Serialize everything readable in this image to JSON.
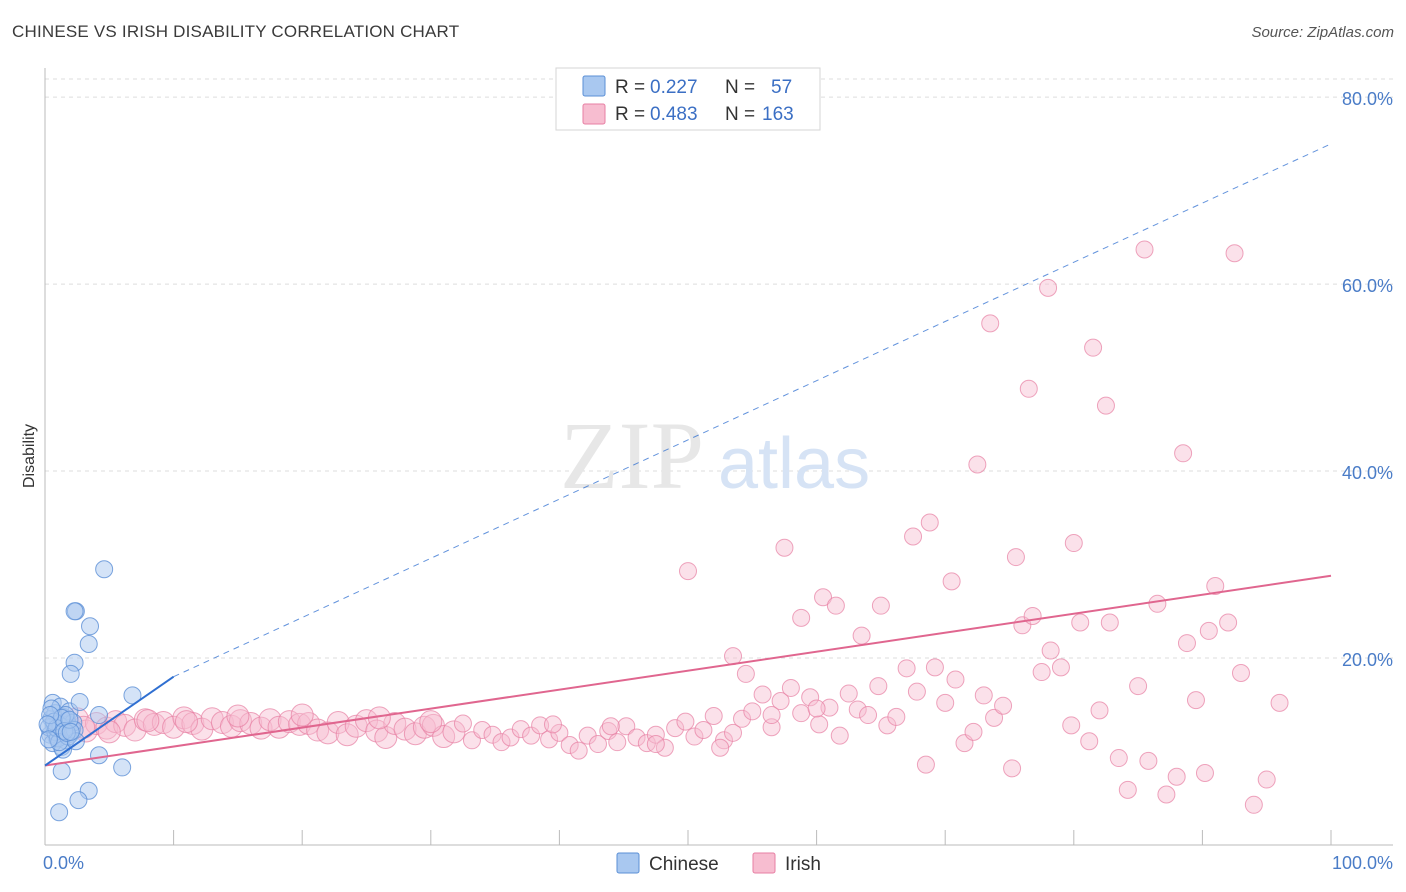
{
  "title": "CHINESE VS IRISH DISABILITY CORRELATION CHART",
  "source": "Source: ZipAtlas.com",
  "watermark": {
    "zip": "ZIP",
    "atlas": "atlas"
  },
  "colors": {
    "chinese_fill": "#a9c8f0",
    "chinese_stroke": "#5b8fd6",
    "chinese_line": "#2f6fd1",
    "irish_fill": "#f7bdd0",
    "irish_stroke": "#e77fa3",
    "irish_line": "#e0668f",
    "tick_text": "#4a7cc7",
    "grid": "#dddddd"
  },
  "legend": {
    "r_label": "R =",
    "n_label": "N =",
    "rows": [
      {
        "series": "Chinese",
        "r": "0.227",
        "n": "57"
      },
      {
        "series": "Irish",
        "r": "0.483",
        "n": "163"
      }
    ]
  },
  "chart_data": {
    "type": "scatter",
    "title": "CHINESE VS IRISH DISABILITY CORRELATION CHART",
    "xlabel": "",
    "ylabel": "Disability",
    "xlim": [
      0,
      100
    ],
    "ylim": [
      0,
      80
    ],
    "x_tick_labels": [
      "0.0%",
      "100.0%"
    ],
    "y_ticks": [
      20,
      40,
      60,
      80
    ],
    "y_tick_labels": [
      "20.0%",
      "40.0%",
      "60.0%",
      "80.0%"
    ],
    "grid": true,
    "legend_position": "top-center",
    "series": [
      {
        "name": "Chinese",
        "r": 0.227,
        "n": 57,
        "trend": {
          "x": [
            0,
            10
          ],
          "y": [
            8.5,
            18.0
          ],
          "dashed_to": [
            100,
            75.0
          ]
        },
        "points": [
          [
            0.5,
            13.5
          ],
          [
            0.6,
            15.2
          ],
          [
            0.7,
            12.8
          ],
          [
            0.8,
            14.1
          ],
          [
            0.9,
            11.5
          ],
          [
            1.0,
            13.0
          ],
          [
            1.1,
            12.2
          ],
          [
            1.2,
            14.8
          ],
          [
            0.4,
            11.8
          ],
          [
            0.3,
            12.6
          ],
          [
            1.3,
            10.5
          ],
          [
            1.4,
            13.7
          ],
          [
            1.5,
            12.0
          ],
          [
            1.6,
            11.2
          ],
          [
            1.7,
            13.3
          ],
          [
            1.8,
            12.9
          ],
          [
            1.9,
            14.3
          ],
          [
            2.0,
            11.9
          ],
          [
            2.1,
            12.4
          ],
          [
            2.2,
            13.1
          ],
          [
            0.6,
            10.9
          ],
          [
            0.8,
            12.1
          ],
          [
            1.0,
            11.4
          ],
          [
            1.2,
            12.7
          ],
          [
            1.4,
            10.2
          ],
          [
            1.6,
            13.9
          ],
          [
            1.8,
            11.6
          ],
          [
            2.3,
            12.3
          ],
          [
            2.4,
            11.1
          ],
          [
            0.5,
            14.6
          ],
          [
            0.7,
            13.2
          ],
          [
            0.9,
            12.5
          ],
          [
            1.1,
            11.0
          ],
          [
            1.3,
            13.6
          ],
          [
            1.5,
            12.2
          ],
          [
            0.4,
            13.9
          ],
          [
            0.2,
            12.9
          ],
          [
            0.3,
            11.3
          ],
          [
            1.7,
            12.0
          ],
          [
            1.9,
            13.4
          ],
          [
            2.4,
            25.0
          ],
          [
            2.3,
            25.0
          ],
          [
            4.6,
            29.5
          ],
          [
            3.5,
            23.4
          ],
          [
            3.4,
            21.5
          ],
          [
            2.3,
            19.5
          ],
          [
            2.0,
            18.3
          ],
          [
            2.7,
            15.3
          ],
          [
            6.8,
            16.0
          ],
          [
            4.2,
            13.9
          ],
          [
            3.4,
            5.8
          ],
          [
            1.1,
            3.5
          ],
          [
            2.6,
            4.8
          ],
          [
            6.0,
            8.3
          ],
          [
            4.2,
            9.6
          ],
          [
            1.3,
            7.9
          ],
          [
            2.0,
            12.1
          ]
        ]
      },
      {
        "name": "Irish",
        "r": 0.483,
        "n": 163,
        "trend": {
          "x": [
            0,
            100
          ],
          "y": [
            8.5,
            28.8
          ]
        },
        "points": [
          [
            1.5,
            12.8
          ],
          [
            2.5,
            13.5
          ],
          [
            3.2,
            12.2
          ],
          [
            4.0,
            13.0
          ],
          [
            4.8,
            12.5
          ],
          [
            5.5,
            13.2
          ],
          [
            6.2,
            12.8
          ],
          [
            7.0,
            12.3
          ],
          [
            7.8,
            13.4
          ],
          [
            8.5,
            12.9
          ],
          [
            9.2,
            13.1
          ],
          [
            10.0,
            12.6
          ],
          [
            10.8,
            13.6
          ],
          [
            11.5,
            13.0
          ],
          [
            12.2,
            12.4
          ],
          [
            13.0,
            13.5
          ],
          [
            13.8,
            13.1
          ],
          [
            14.5,
            12.7
          ],
          [
            15.2,
            13.3
          ],
          [
            16.0,
            13.0
          ],
          [
            16.8,
            12.5
          ],
          [
            17.5,
            13.4
          ],
          [
            18.2,
            12.6
          ],
          [
            19.0,
            13.2
          ],
          [
            19.8,
            12.9
          ],
          [
            20.5,
            13.0
          ],
          [
            21.2,
            12.3
          ],
          [
            22.0,
            12.0
          ],
          [
            22.8,
            13.1
          ],
          [
            23.5,
            11.8
          ],
          [
            24.2,
            12.7
          ],
          [
            25.0,
            13.3
          ],
          [
            25.8,
            12.2
          ],
          [
            26.5,
            11.5
          ],
          [
            27.2,
            13.0
          ],
          [
            28.0,
            12.4
          ],
          [
            28.8,
            11.9
          ],
          [
            29.5,
            12.6
          ],
          [
            30.2,
            12.8
          ],
          [
            31.0,
            11.6
          ],
          [
            31.8,
            12.1
          ],
          [
            32.5,
            13.0
          ],
          [
            33.2,
            11.2
          ],
          [
            34.0,
            12.3
          ],
          [
            34.8,
            11.8
          ],
          [
            35.5,
            11.0
          ],
          [
            36.2,
            11.5
          ],
          [
            37.0,
            12.4
          ],
          [
            37.8,
            11.7
          ],
          [
            38.5,
            12.8
          ],
          [
            39.2,
            11.3
          ],
          [
            40.0,
            12.0
          ],
          [
            40.8,
            10.7
          ],
          [
            41.5,
            10.1
          ],
          [
            42.2,
            11.7
          ],
          [
            43.0,
            10.8
          ],
          [
            43.8,
            12.2
          ],
          [
            44.5,
            11.0
          ],
          [
            45.2,
            12.7
          ],
          [
            46.0,
            11.5
          ],
          [
            46.8,
            10.9
          ],
          [
            47.5,
            11.8
          ],
          [
            48.2,
            10.4
          ],
          [
            49.0,
            12.5
          ],
          [
            49.8,
            13.2
          ],
          [
            50.5,
            11.6
          ],
          [
            51.2,
            12.3
          ],
          [
            52.0,
            13.8
          ],
          [
            52.8,
            11.2
          ],
          [
            53.5,
            12.0
          ],
          [
            54.2,
            13.5
          ],
          [
            55.0,
            14.3
          ],
          [
            55.8,
            16.1
          ],
          [
            56.5,
            12.6
          ],
          [
            57.2,
            15.4
          ],
          [
            58.0,
            16.8
          ],
          [
            58.8,
            14.1
          ],
          [
            59.5,
            15.8
          ],
          [
            60.2,
            12.9
          ],
          [
            61.0,
            14.7
          ],
          [
            61.8,
            11.7
          ],
          [
            62.5,
            16.2
          ],
          [
            63.2,
            14.5
          ],
          [
            64.0,
            13.9
          ],
          [
            64.8,
            17.0
          ],
          [
            65.5,
            12.8
          ],
          [
            66.2,
            13.7
          ],
          [
            67.0,
            18.9
          ],
          [
            67.8,
            16.4
          ],
          [
            68.5,
            8.6
          ],
          [
            69.2,
            19.0
          ],
          [
            70.0,
            15.2
          ],
          [
            70.8,
            17.7
          ],
          [
            71.5,
            10.9
          ],
          [
            72.2,
            12.1
          ],
          [
            73.0,
            16.0
          ],
          [
            73.8,
            13.6
          ],
          [
            74.5,
            14.9
          ],
          [
            75.2,
            8.2
          ],
          [
            76.0,
            23.5
          ],
          [
            76.8,
            24.5
          ],
          [
            77.5,
            18.5
          ],
          [
            78.2,
            20.8
          ],
          [
            79.0,
            19.0
          ],
          [
            79.8,
            12.8
          ],
          [
            80.5,
            23.8
          ],
          [
            81.2,
            11.1
          ],
          [
            82.0,
            14.4
          ],
          [
            82.8,
            23.8
          ],
          [
            83.5,
            9.3
          ],
          [
            84.2,
            5.9
          ],
          [
            85.0,
            17.0
          ],
          [
            85.8,
            9.0
          ],
          [
            86.5,
            25.8
          ],
          [
            87.2,
            5.4
          ],
          [
            88.0,
            7.3
          ],
          [
            88.8,
            21.6
          ],
          [
            89.5,
            15.5
          ],
          [
            90.2,
            7.7
          ],
          [
            91.0,
            27.7
          ],
          [
            92.0,
            23.8
          ],
          [
            93.0,
            18.4
          ],
          [
            94.0,
            4.3
          ],
          [
            95.0,
            7.0
          ],
          [
            96.0,
            15.2
          ],
          [
            50.0,
            29.3
          ],
          [
            53.5,
            20.2
          ],
          [
            54.5,
            18.3
          ],
          [
            57.5,
            31.8
          ],
          [
            58.8,
            24.3
          ],
          [
            60.5,
            26.5
          ],
          [
            61.5,
            25.6
          ],
          [
            63.5,
            22.4
          ],
          [
            65.0,
            25.6
          ],
          [
            67.5,
            33.0
          ],
          [
            68.8,
            34.5
          ],
          [
            70.5,
            28.2
          ],
          [
            72.5,
            40.7
          ],
          [
            73.5,
            55.8
          ],
          [
            75.5,
            30.8
          ],
          [
            76.5,
            48.8
          ],
          [
            78.0,
            59.6
          ],
          [
            80.0,
            32.3
          ],
          [
            81.5,
            53.2
          ],
          [
            82.5,
            47.0
          ],
          [
            85.5,
            63.7
          ],
          [
            88.5,
            41.9
          ],
          [
            90.5,
            22.9
          ],
          [
            92.5,
            63.3
          ],
          [
            30.0,
            13.2
          ],
          [
            26.0,
            13.6
          ],
          [
            20.0,
            13.9
          ],
          [
            15.0,
            13.8
          ],
          [
            11.0,
            13.2
          ],
          [
            8.0,
            13.3
          ],
          [
            5.0,
            12.1
          ],
          [
            3.0,
            12.6
          ],
          [
            39.5,
            12.9
          ],
          [
            44.0,
            12.7
          ],
          [
            47.5,
            10.8
          ],
          [
            52.5,
            10.4
          ],
          [
            56.5,
            13.9
          ],
          [
            60.0,
            14.6
          ]
        ]
      }
    ]
  },
  "bottom_legend": [
    "Chinese",
    "Irish"
  ]
}
